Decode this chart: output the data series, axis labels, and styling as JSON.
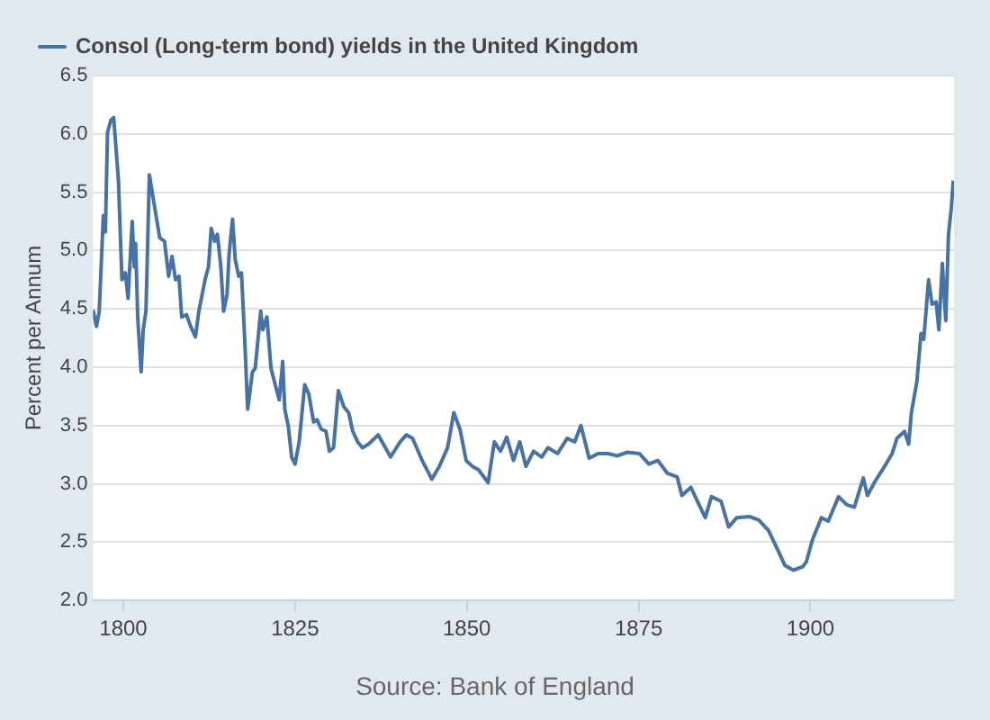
{
  "chart_data": {
    "type": "line",
    "series": [
      {
        "name": "Consol (Long-term bond) yields in the United Kingdom",
        "color": "#4572a7",
        "x": [
          1795.6,
          1796.1,
          1796.5,
          1797.1,
          1797.4,
          1797.7,
          1798.2,
          1798.6,
          1799.3,
          1799.8,
          1800.3,
          1800.7,
          1801.3,
          1801.6,
          1801.8,
          1802.1,
          1802.6,
          1802.9,
          1803.3,
          1803.8,
          1804.6,
          1805.3,
          1806.0,
          1806.6,
          1807.1,
          1807.6,
          1808.1,
          1808.5,
          1809.2,
          1809.8,
          1810.5,
          1811.0,
          1811.9,
          1812.4,
          1812.8,
          1813.3,
          1813.7,
          1814.2,
          1814.6,
          1815.1,
          1815.4,
          1815.9,
          1816.3,
          1816.8,
          1817.2,
          1817.7,
          1818.1,
          1818.8,
          1819.2,
          1820.0,
          1820.3,
          1820.9,
          1821.5,
          1822.2,
          1822.7,
          1823.2,
          1823.5,
          1824.0,
          1824.5,
          1825.0,
          1825.6,
          1826.4,
          1827.0,
          1827.7,
          1828.2,
          1828.8,
          1829.5,
          1830.0,
          1830.6,
          1831.3,
          1832.1,
          1832.8,
          1833.4,
          1834.1,
          1834.8,
          1835.7,
          1837.1,
          1838.9,
          1840.3,
          1841.2,
          1842.1,
          1843.5,
          1844.9,
          1846.0,
          1847.2,
          1848.1,
          1849.0,
          1849.9,
          1850.8,
          1851.7,
          1853.1,
          1854.0,
          1854.9,
          1855.8,
          1856.8,
          1857.7,
          1858.6,
          1859.7,
          1860.9,
          1861.8,
          1863.2,
          1864.6,
          1865.7,
          1866.6,
          1867.8,
          1869.1,
          1870.5,
          1871.9,
          1873.3,
          1875.1,
          1876.5,
          1877.8,
          1879.2,
          1880.6,
          1881.3,
          1882.6,
          1883.8,
          1884.7,
          1885.6,
          1887.0,
          1888.1,
          1889.3,
          1891.1,
          1892.5,
          1893.9,
          1895.2,
          1896.3,
          1897.5,
          1898.9,
          1899.4,
          1900.3,
          1901.6,
          1902.6,
          1904.1,
          1905.3,
          1906.4,
          1907.7,
          1908.3,
          1909.4,
          1910.8,
          1911.9,
          1912.6,
          1913.7,
          1914.3,
          1914.7,
          1915.5,
          1916.1,
          1916.5,
          1917.2,
          1917.7,
          1918.3,
          1918.7,
          1919.2,
          1919.7,
          1920.1,
          1920.5,
          1920.8
        ],
        "values": [
          4.49,
          4.35,
          4.48,
          5.3,
          5.16,
          6.01,
          6.12,
          6.14,
          5.6,
          4.75,
          4.81,
          4.59,
          5.25,
          4.86,
          5.06,
          4.43,
          3.96,
          4.32,
          4.48,
          5.65,
          5.36,
          5.11,
          5.08,
          4.78,
          4.95,
          4.75,
          4.78,
          4.43,
          4.45,
          4.35,
          4.26,
          4.48,
          4.75,
          4.86,
          5.19,
          5.08,
          5.14,
          4.86,
          4.48,
          4.62,
          4.97,
          5.27,
          4.92,
          4.78,
          4.81,
          4.21,
          3.64,
          3.96,
          3.99,
          4.48,
          4.32,
          4.43,
          3.99,
          3.83,
          3.72,
          4.05,
          3.64,
          3.5,
          3.23,
          3.17,
          3.36,
          3.85,
          3.77,
          3.53,
          3.55,
          3.47,
          3.45,
          3.28,
          3.31,
          3.8,
          3.66,
          3.61,
          3.45,
          3.36,
          3.31,
          3.34,
          3.42,
          3.23,
          3.36,
          3.42,
          3.39,
          3.2,
          3.04,
          3.15,
          3.31,
          3.61,
          3.47,
          3.2,
          3.15,
          3.12,
          3.01,
          3.36,
          3.28,
          3.4,
          3.2,
          3.36,
          3.15,
          3.28,
          3.23,
          3.31,
          3.26,
          3.39,
          3.36,
          3.5,
          3.22,
          3.26,
          3.26,
          3.24,
          3.27,
          3.26,
          3.17,
          3.2,
          3.09,
          3.06,
          2.9,
          2.97,
          2.82,
          2.71,
          2.89,
          2.85,
          2.63,
          2.71,
          2.72,
          2.69,
          2.6,
          2.44,
          2.3,
          2.26,
          2.29,
          2.33,
          2.52,
          2.71,
          2.68,
          2.89,
          2.82,
          2.8,
          3.05,
          2.9,
          3.02,
          3.15,
          3.26,
          3.39,
          3.45,
          3.34,
          3.61,
          3.88,
          4.29,
          4.24,
          4.75,
          4.54,
          4.56,
          4.32,
          4.89,
          4.4,
          5.14,
          5.36,
          5.6
        ]
      }
    ],
    "ylabel": "Percent per Annum",
    "annotations": [
      "Source: Bank of England"
    ],
    "xlim": [
      1795.6,
      1920.9
    ],
    "xticks": [
      1800,
      1825,
      1850,
      1875,
      1900
    ],
    "ylim": [
      2,
      6.5
    ],
    "yticks": [
      {
        "value": 2,
        "label": "2.0"
      },
      2.5,
      {
        "value": 3,
        "label": "3.0"
      },
      3.5,
      {
        "value": 4,
        "label": "4.0"
      },
      4.5,
      {
        "value": 5,
        "label": "5.0"
      },
      5.5,
      {
        "value": 6,
        "label": "6.0"
      },
      6.5
    ],
    "grid": "y",
    "legend": "top left",
    "marker": "none",
    "line_style": "solid"
  }
}
